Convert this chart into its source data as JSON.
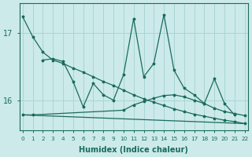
{
  "xlabel": "Humidex (Indice chaleur)",
  "x": [
    0,
    1,
    2,
    3,
    4,
    5,
    6,
    7,
    8,
    9,
    10,
    11,
    12,
    13,
    14,
    15,
    16,
    17,
    18,
    19,
    20,
    21,
    22
  ],
  "line1": [
    17.25,
    16.95,
    16.72,
    16.6,
    16.55,
    16.48,
    16.42,
    16.35,
    16.28,
    16.22,
    16.15,
    16.08,
    16.02,
    15.97,
    15.92,
    15.87,
    15.83,
    15.79,
    15.76,
    15.73,
    15.7,
    15.68,
    15.65
  ],
  "line2": [
    null,
    null,
    16.6,
    16.62,
    16.58,
    16.28,
    15.9,
    16.25,
    16.08,
    16.0,
    16.38,
    17.22,
    16.35,
    16.55,
    17.28,
    16.45,
    16.18,
    16.08,
    15.95,
    16.32,
    15.95,
    15.78,
    null
  ],
  "line3": [
    15.78,
    15.78,
    null,
    null,
    null,
    null,
    null,
    null,
    null,
    null,
    15.85,
    15.93,
    15.98,
    16.03,
    16.07,
    16.08,
    16.05,
    16.0,
    15.95,
    15.88,
    15.83,
    15.8,
    15.77
  ],
  "line4_x": [
    0,
    22
  ],
  "line4_y": [
    15.78,
    15.65
  ],
  "bg_color": "#cceaea",
  "grid_color": "#aad4d4",
  "line_color": "#1a6b5a",
  "ylim": [
    15.55,
    17.45
  ],
  "yticks": [
    16,
    17
  ],
  "xlim": [
    -0.3,
    22.3
  ]
}
